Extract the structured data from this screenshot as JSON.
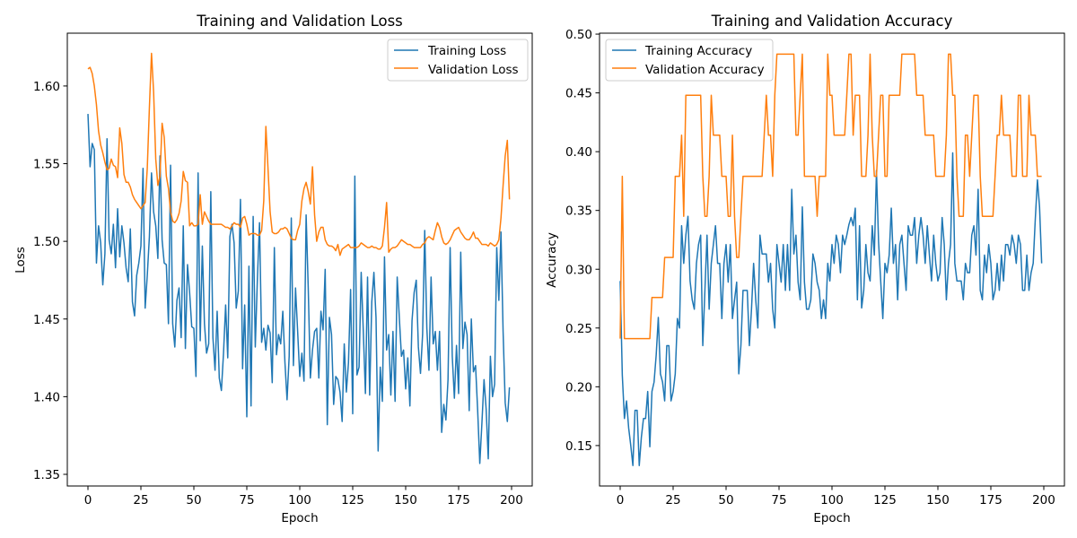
{
  "colors": {
    "training": "#1f77b4",
    "validation": "#ff7f0e"
  },
  "chart_data": [
    {
      "type": "line",
      "title": "Training and Validation Loss",
      "xlabel": "Epoch",
      "ylabel": "Loss",
      "xlim": [
        -9.75,
        209.75
      ],
      "ylim": [
        1.3425,
        1.634
      ],
      "xticks": [
        0,
        25,
        50,
        75,
        100,
        125,
        150,
        175,
        200
      ],
      "yticks": [
        1.35,
        1.4,
        1.45,
        1.5,
        1.55,
        1.6
      ],
      "ytick_labels": [
        "1.35",
        "1.40",
        "1.45",
        "1.50",
        "1.55",
        "1.60"
      ],
      "grid": false,
      "legend_placement": "top-right",
      "series": [
        {
          "name": "Training Loss",
          "color": "#1f77b4",
          "values": [
            1.582,
            1.548,
            1.563,
            1.559,
            1.486,
            1.51,
            1.499,
            1.472,
            1.492,
            1.566,
            1.501,
            1.492,
            1.511,
            1.483,
            1.521,
            1.49,
            1.51,
            1.499,
            1.483,
            1.474,
            1.508,
            1.461,
            1.452,
            1.478,
            1.486,
            1.497,
            1.547,
            1.457,
            1.478,
            1.503,
            1.544,
            1.519,
            1.51,
            1.489,
            1.555,
            1.501,
            1.486,
            1.485,
            1.447,
            1.549,
            1.447,
            1.432,
            1.462,
            1.47,
            1.438,
            1.51,
            1.431,
            1.485,
            1.467,
            1.445,
            1.444,
            1.413,
            1.544,
            1.436,
            1.497,
            1.447,
            1.428,
            1.434,
            1.532,
            1.438,
            1.417,
            1.455,
            1.412,
            1.404,
            1.428,
            1.459,
            1.425,
            1.503,
            1.511,
            1.499,
            1.457,
            1.468,
            1.527,
            1.418,
            1.459,
            1.387,
            1.484,
            1.394,
            1.516,
            1.432,
            1.476,
            1.512,
            1.435,
            1.444,
            1.43,
            1.446,
            1.441,
            1.409,
            1.496,
            1.427,
            1.44,
            1.434,
            1.455,
            1.422,
            1.398,
            1.426,
            1.515,
            1.42,
            1.47,
            1.442,
            1.413,
            1.428,
            1.41,
            1.517,
            1.47,
            1.412,
            1.43,
            1.442,
            1.444,
            1.412,
            1.455,
            1.443,
            1.482,
            1.382,
            1.451,
            1.44,
            1.395,
            1.413,
            1.411,
            1.403,
            1.384,
            1.434,
            1.403,
            1.422,
            1.469,
            1.389,
            1.542,
            1.414,
            1.419,
            1.48,
            1.442,
            1.402,
            1.477,
            1.401,
            1.461,
            1.48,
            1.451,
            1.365,
            1.419,
            1.397,
            1.49,
            1.43,
            1.44,
            1.401,
            1.442,
            1.397,
            1.477,
            1.451,
            1.426,
            1.43,
            1.405,
            1.425,
            1.394,
            1.449,
            1.467,
            1.475,
            1.432,
            1.415,
            1.44,
            1.507,
            1.444,
            1.417,
            1.477,
            1.434,
            1.442,
            1.417,
            1.442,
            1.377,
            1.395,
            1.385,
            1.411,
            1.496,
            1.426,
            1.399,
            1.433,
            1.402,
            1.493,
            1.431,
            1.448,
            1.44,
            1.391,
            1.45,
            1.416,
            1.42,
            1.391,
            1.357,
            1.383,
            1.411,
            1.392,
            1.36,
            1.426,
            1.4,
            1.408,
            1.496,
            1.462,
            1.506,
            1.442,
            1.396,
            1.384,
            1.406
          ]
        },
        {
          "name": "Validation Loss",
          "color": "#ff7f0e",
          "values": [
            1.611,
            1.612,
            1.608,
            1.6,
            1.588,
            1.571,
            1.562,
            1.557,
            1.551,
            1.546,
            1.547,
            1.553,
            1.549,
            1.548,
            1.541,
            1.573,
            1.563,
            1.543,
            1.538,
            1.538,
            1.535,
            1.53,
            1.527,
            1.525,
            1.523,
            1.521,
            1.523,
            1.525,
            1.547,
            1.586,
            1.621,
            1.596,
            1.553,
            1.536,
            1.542,
            1.576,
            1.567,
            1.542,
            1.534,
            1.519,
            1.513,
            1.512,
            1.514,
            1.518,
            1.526,
            1.545,
            1.539,
            1.538,
            1.51,
            1.512,
            1.51,
            1.51,
            1.511,
            1.53,
            1.511,
            1.519,
            1.516,
            1.513,
            1.511,
            1.511,
            1.511,
            1.511,
            1.511,
            1.511,
            1.51,
            1.509,
            1.509,
            1.508,
            1.51,
            1.512,
            1.511,
            1.511,
            1.509,
            1.515,
            1.516,
            1.511,
            1.504,
            1.505,
            1.505,
            1.505,
            1.504,
            1.504,
            1.507,
            1.526,
            1.574,
            1.547,
            1.519,
            1.506,
            1.505,
            1.505,
            1.506,
            1.508,
            1.508,
            1.509,
            1.508,
            1.505,
            1.502,
            1.501,
            1.501,
            1.507,
            1.511,
            1.526,
            1.534,
            1.538,
            1.532,
            1.524,
            1.548,
            1.517,
            1.5,
            1.506,
            1.509,
            1.509,
            1.501,
            1.498,
            1.497,
            1.497,
            1.496,
            1.494,
            1.498,
            1.491,
            1.495,
            1.496,
            1.497,
            1.498,
            1.496,
            1.496,
            1.496,
            1.496,
            1.497,
            1.499,
            1.498,
            1.497,
            1.496,
            1.496,
            1.497,
            1.496,
            1.496,
            1.495,
            1.495,
            1.497,
            1.509,
            1.525,
            1.493,
            1.495,
            1.496,
            1.496,
            1.497,
            1.499,
            1.501,
            1.5,
            1.499,
            1.498,
            1.498,
            1.497,
            1.496,
            1.496,
            1.496,
            1.496,
            1.498,
            1.499,
            1.502,
            1.503,
            1.502,
            1.501,
            1.507,
            1.512,
            1.509,
            1.503,
            1.499,
            1.498,
            1.499,
            1.501,
            1.504,
            1.507,
            1.508,
            1.509,
            1.506,
            1.504,
            1.502,
            1.501,
            1.501,
            1.503,
            1.506,
            1.502,
            1.502,
            1.5,
            1.498,
            1.498,
            1.498,
            1.497,
            1.499,
            1.498,
            1.497,
            1.498,
            1.501,
            1.515,
            1.536,
            1.555,
            1.565,
            1.527
          ]
        }
      ]
    },
    {
      "type": "line",
      "title": "Training and Validation Accuracy",
      "xlabel": "Epoch",
      "ylabel": "Accuracy",
      "xlim": [
        -9.75,
        209.75
      ],
      "ylim": [
        0.1156,
        0.5008
      ],
      "xticks": [
        0,
        25,
        50,
        75,
        100,
        125,
        150,
        175,
        200
      ],
      "yticks": [
        0.15,
        0.2,
        0.25,
        0.3,
        0.35,
        0.4,
        0.45,
        0.5
      ],
      "ytick_labels": [
        "0.15",
        "0.20",
        "0.25",
        "0.30",
        "0.35",
        "0.40",
        "0.45",
        "0.50"
      ],
      "grid": false,
      "legend_placement": "top-left",
      "series": [
        {
          "name": "Training Accuracy",
          "color": "#1f77b4",
          "values": [
            0.29,
            0.21,
            0.173,
            0.188,
            0.165,
            0.15,
            0.133,
            0.18,
            0.18,
            0.133,
            0.157,
            0.173,
            0.173,
            0.196,
            0.149,
            0.196,
            0.204,
            0.227,
            0.259,
            0.211,
            0.204,
            0.188,
            0.235,
            0.235,
            0.188,
            0.196,
            0.211,
            0.258,
            0.25,
            0.337,
            0.305,
            0.329,
            0.345,
            0.29,
            0.274,
            0.266,
            0.305,
            0.321,
            0.329,
            0.235,
            0.282,
            0.329,
            0.266,
            0.305,
            0.321,
            0.337,
            0.305,
            0.305,
            0.258,
            0.305,
            0.321,
            0.289,
            0.321,
            0.258,
            0.274,
            0.289,
            0.211,
            0.235,
            0.282,
            0.282,
            0.282,
            0.235,
            0.266,
            0.305,
            0.274,
            0.25,
            0.329,
            0.313,
            0.313,
            0.313,
            0.289,
            0.305,
            0.266,
            0.25,
            0.321,
            0.305,
            0.289,
            0.321,
            0.282,
            0.321,
            0.282,
            0.368,
            0.313,
            0.329,
            0.289,
            0.274,
            0.353,
            0.289,
            0.266,
            0.266,
            0.274,
            0.313,
            0.305,
            0.289,
            0.282,
            0.258,
            0.274,
            0.258,
            0.305,
            0.29,
            0.321,
            0.305,
            0.329,
            0.321,
            0.297,
            0.329,
            0.321,
            0.329,
            0.338,
            0.344,
            0.337,
            0.352,
            0.274,
            0.337,
            0.267,
            0.282,
            0.321,
            0.297,
            0.29,
            0.337,
            0.312,
            0.384,
            0.323,
            0.29,
            0.258,
            0.305,
            0.297,
            0.312,
            0.352,
            0.305,
            0.321,
            0.274,
            0.321,
            0.329,
            0.305,
            0.282,
            0.337,
            0.329,
            0.329,
            0.344,
            0.305,
            0.329,
            0.344,
            0.329,
            0.305,
            0.337,
            0.312,
            0.29,
            0.329,
            0.305,
            0.29,
            0.297,
            0.344,
            0.321,
            0.274,
            0.305,
            0.321,
            0.399,
            0.305,
            0.29,
            0.29,
            0.29,
            0.274,
            0.305,
            0.297,
            0.297,
            0.329,
            0.337,
            0.312,
            0.368,
            0.282,
            0.274,
            0.312,
            0.297,
            0.321,
            0.305,
            0.274,
            0.282,
            0.305,
            0.282,
            0.312,
            0.29,
            0.321,
            0.321,
            0.312,
            0.329,
            0.321,
            0.305,
            0.329,
            0.321,
            0.282,
            0.282,
            0.312,
            0.282,
            0.297,
            0.305,
            0.343,
            0.376,
            0.353,
            0.305
          ]
        },
        {
          "name": "Validation Accuracy",
          "color": "#ff7f0e",
          "values": [
            0.241,
            0.379,
            0.241,
            0.241,
            0.241,
            0.241,
            0.241,
            0.241,
            0.241,
            0.241,
            0.241,
            0.241,
            0.241,
            0.241,
            0.241,
            0.276,
            0.276,
            0.276,
            0.276,
            0.276,
            0.276,
            0.31,
            0.31,
            0.31,
            0.31,
            0.31,
            0.379,
            0.379,
            0.379,
            0.414,
            0.345,
            0.448,
            0.448,
            0.448,
            0.448,
            0.448,
            0.448,
            0.448,
            0.448,
            0.379,
            0.345,
            0.345,
            0.379,
            0.448,
            0.414,
            0.414,
            0.414,
            0.414,
            0.379,
            0.379,
            0.379,
            0.345,
            0.345,
            0.414,
            0.345,
            0.31,
            0.31,
            0.345,
            0.379,
            0.379,
            0.379,
            0.379,
            0.379,
            0.379,
            0.379,
            0.379,
            0.379,
            0.379,
            0.414,
            0.448,
            0.414,
            0.414,
            0.379,
            0.448,
            0.483,
            0.483,
            0.483,
            0.483,
            0.483,
            0.483,
            0.483,
            0.483,
            0.483,
            0.414,
            0.414,
            0.448,
            0.483,
            0.379,
            0.379,
            0.379,
            0.379,
            0.379,
            0.379,
            0.345,
            0.379,
            0.379,
            0.379,
            0.379,
            0.483,
            0.448,
            0.448,
            0.414,
            0.414,
            0.414,
            0.414,
            0.414,
            0.414,
            0.448,
            0.483,
            0.483,
            0.414,
            0.448,
            0.448,
            0.448,
            0.379,
            0.379,
            0.379,
            0.414,
            0.483,
            0.414,
            0.379,
            0.379,
            0.414,
            0.448,
            0.448,
            0.379,
            0.379,
            0.448,
            0.448,
            0.448,
            0.448,
            0.448,
            0.448,
            0.483,
            0.483,
            0.483,
            0.483,
            0.483,
            0.483,
            0.483,
            0.448,
            0.448,
            0.448,
            0.448,
            0.414,
            0.414,
            0.414,
            0.414,
            0.414,
            0.379,
            0.379,
            0.379,
            0.379,
            0.379,
            0.414,
            0.483,
            0.483,
            0.448,
            0.448,
            0.379,
            0.345,
            0.345,
            0.345,
            0.414,
            0.414,
            0.379,
            0.414,
            0.448,
            0.448,
            0.448,
            0.379,
            0.345,
            0.345,
            0.345,
            0.345,
            0.345,
            0.345,
            0.379,
            0.414,
            0.414,
            0.448,
            0.414,
            0.414,
            0.414,
            0.414,
            0.379,
            0.379,
            0.379,
            0.448,
            0.448,
            0.379,
            0.379,
            0.379,
            0.448,
            0.414,
            0.414,
            0.414,
            0.379,
            0.379,
            0.379
          ]
        }
      ]
    }
  ]
}
